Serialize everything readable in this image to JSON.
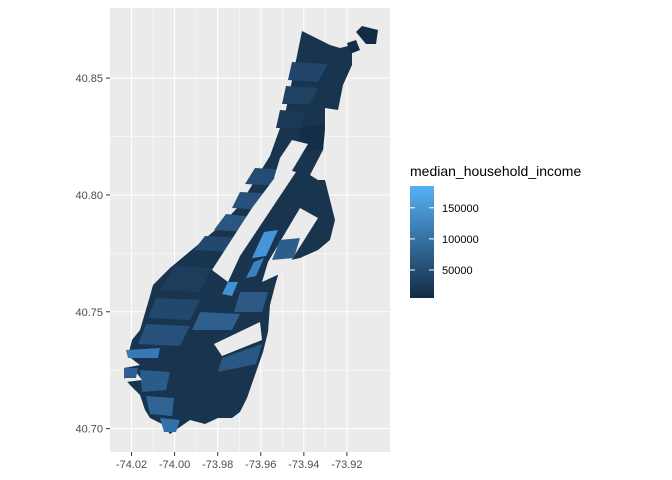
{
  "chart_data": {
    "type": "choropleth",
    "title": "",
    "xlabel": "",
    "ylabel": "",
    "x_ticks": [
      "-74.02",
      "-74.00",
      "-73.98",
      "-73.96",
      "-73.94",
      "-73.92"
    ],
    "y_ticks": [
      "40.70",
      "40.75",
      "40.80",
      "40.85"
    ],
    "xlim": [
      -74.03,
      -73.9
    ],
    "ylim": [
      40.69,
      40.88
    ],
    "grid": true,
    "legend": {
      "title": "median_household_income",
      "placement": "right",
      "labels": [
        "150000",
        "100000",
        "50000"
      ],
      "values": [
        150000,
        100000,
        50000
      ],
      "range": [
        5000,
        185000
      ],
      "color_low": "#132B43",
      "color_high": "#56B1F7"
    },
    "panel_background": "#EBEBEB",
    "grid_color": "#FFFFFF"
  }
}
